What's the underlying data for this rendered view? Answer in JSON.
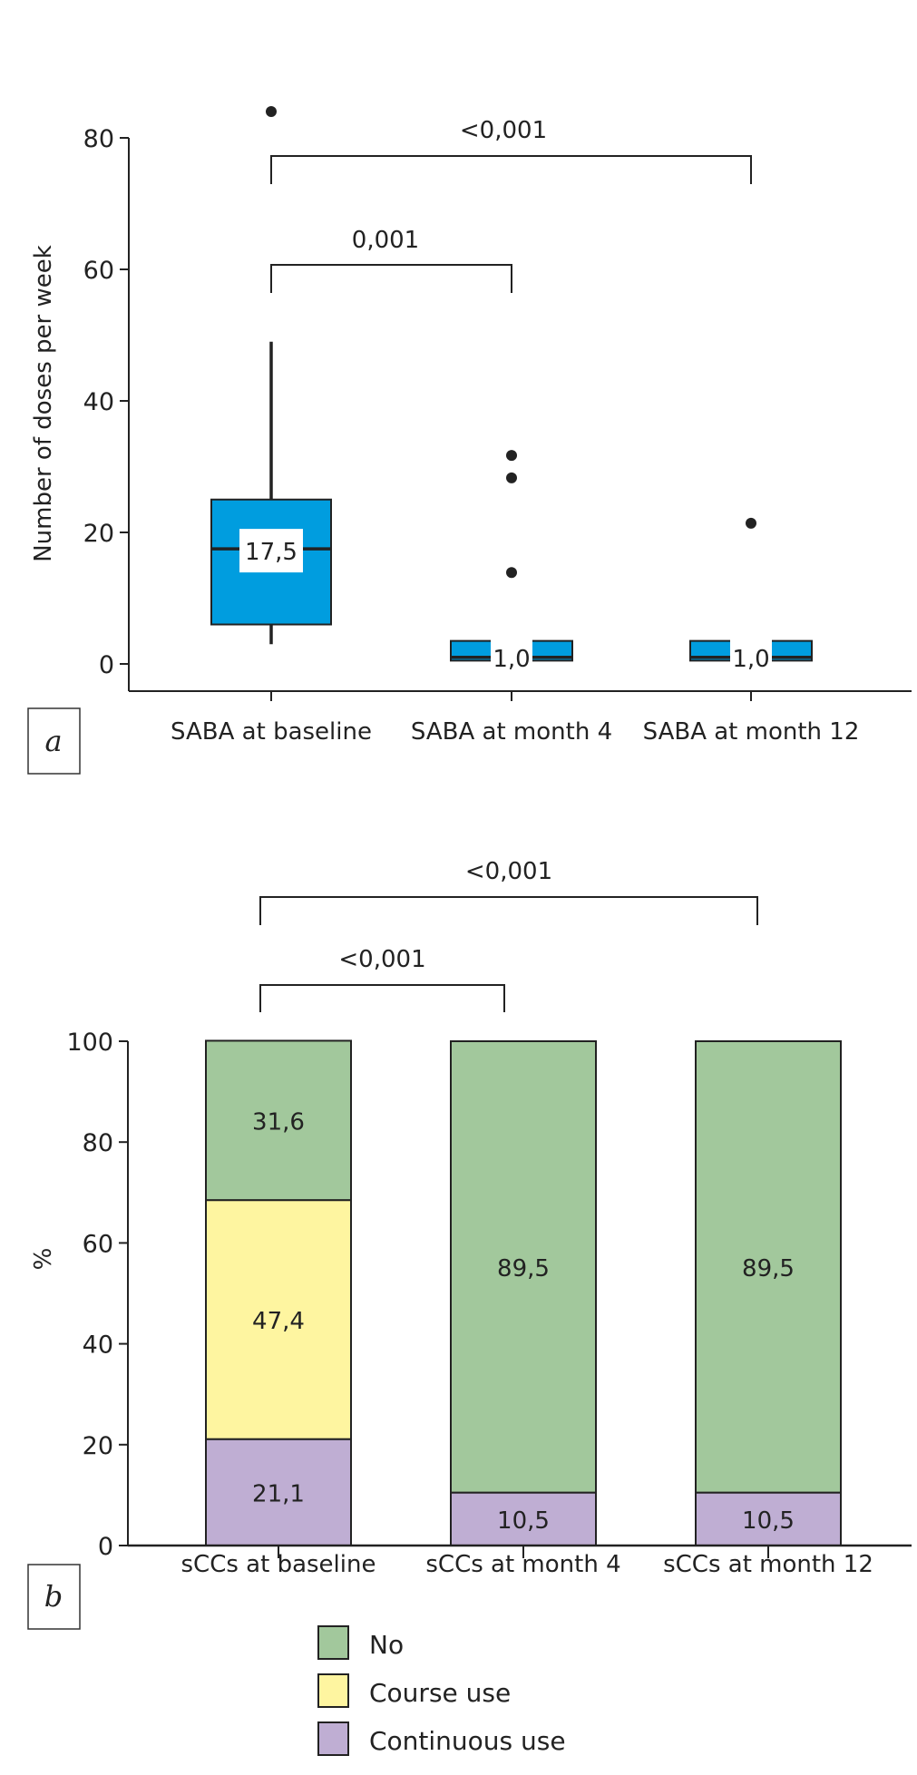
{
  "chart_data": [
    {
      "panel": "a",
      "type": "boxplot",
      "ylabel": "Number of doses per week",
      "xlabel": "",
      "ylim": [
        0,
        80
      ],
      "yticks": [
        0,
        20,
        40,
        60,
        80
      ],
      "grid": false,
      "categories": [
        "SABA at baseline",
        "SABA at month 4",
        "SABA at month 12"
      ],
      "boxes": [
        {
          "category": "SABA at baseline",
          "q1": 6,
          "median": 17.5,
          "q3": 25,
          "whisker_low": 3,
          "whisker_high": 49,
          "median_label": "17,5",
          "outliers": [
            84
          ]
        },
        {
          "category": "SABA at month 4",
          "q1": 0.5,
          "median": 1.0,
          "q3": 3.5,
          "whisker_low": null,
          "whisker_high": null,
          "median_label": "1,0",
          "outliers": [
            31.7,
            28.3,
            13.9
          ]
        },
        {
          "category": "SABA at month 12",
          "q1": 0.5,
          "median": 1.0,
          "q3": 3.5,
          "whisker_low": null,
          "whisker_high": null,
          "median_label": "1,0",
          "outliers": [
            21.4
          ]
        }
      ],
      "comparisons": [
        {
          "from": "SABA at baseline",
          "to": "SABA at month 4",
          "p_label": "0,001",
          "level": 1
        },
        {
          "from": "SABA at baseline",
          "to": "SABA at month 12",
          "p_label": "<0,001",
          "level": 2
        }
      ],
      "colors": {
        "box": "#009ddf",
        "line": "#222222"
      }
    },
    {
      "panel": "b",
      "type": "bar",
      "stacked": true,
      "ylabel": "%",
      "xlabel": "",
      "ylim": [
        0,
        100
      ],
      "yticks": [
        0,
        20,
        40,
        60,
        80,
        100
      ],
      "grid": false,
      "categories": [
        "sCCs at baseline",
        "sCCs at month 4",
        "sCCs at month 12"
      ],
      "series": [
        {
          "name": "Continuous use",
          "color": "#bfaed3",
          "values": [
            21.1,
            10.5,
            10.5
          ],
          "labels": [
            "21,1",
            "10,5",
            "10,5"
          ]
        },
        {
          "name": "Course use",
          "color": "#fef5a0",
          "values": [
            47.4,
            0,
            0
          ],
          "labels": [
            "47,4",
            "",
            ""
          ]
        },
        {
          "name": "No",
          "color": "#a2c89c",
          "values": [
            31.6,
            89.5,
            89.5
          ],
          "labels": [
            "31,6",
            "89,5",
            "89,5"
          ]
        }
      ],
      "comparisons": [
        {
          "from": "sCCs at baseline",
          "to": "sCCs at month 4",
          "p_label": "<0,001",
          "level": 1
        },
        {
          "from": "sCCs at baseline",
          "to": "sCCs at month 12",
          "p_label": "<0,001",
          "level": 2
        }
      ],
      "legend": {
        "placement": "bottom-center",
        "items": [
          {
            "label": "No",
            "color": "#a2c89c"
          },
          {
            "label": "Course use",
            "color": "#fef5a0"
          },
          {
            "label": "Continuous use",
            "color": "#bfaed3"
          }
        ]
      }
    }
  ]
}
